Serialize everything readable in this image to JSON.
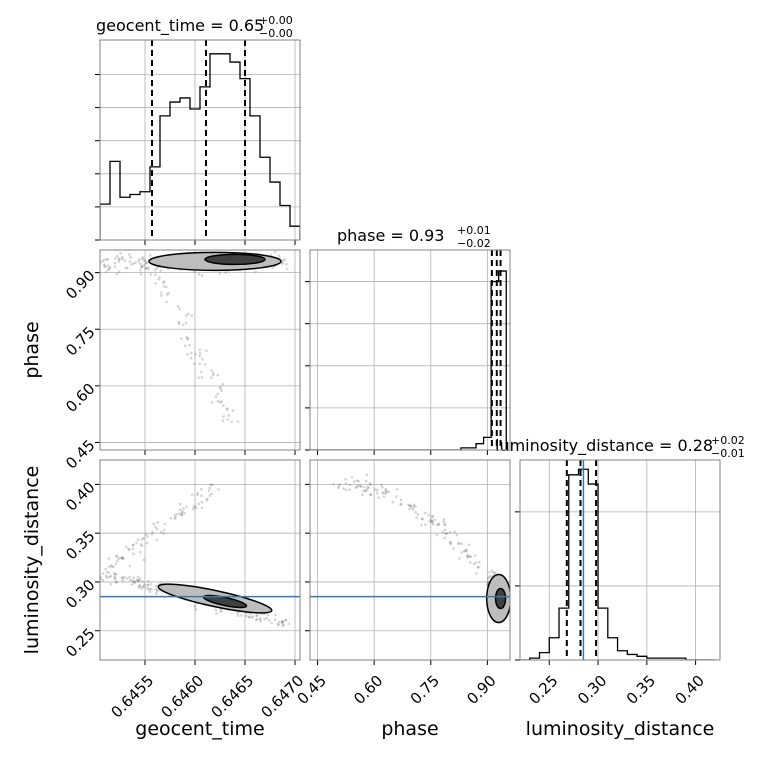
{
  "chart_data": {
    "type": "corner",
    "parameters": [
      "geocent_time",
      "phase",
      "luminosity_distance"
    ],
    "axis_labels": {
      "x": [
        "geocent_time",
        "phase",
        "luminosity_distance"
      ],
      "y": [
        "phase",
        "luminosity_distance"
      ]
    },
    "titles": [
      {
        "param": "geocent_time",
        "label": "geocent_time = 0.65",
        "plus": "+0.00",
        "minus": "−0.00"
      },
      {
        "param": "phase",
        "label": "phase = 0.93",
        "plus": "+0.01",
        "minus": "−0.02"
      },
      {
        "param": "luminosity_distance",
        "label": "luminosity_distance = 0.28",
        "plus": "+0.02",
        "minus": "−0.01"
      }
    ],
    "ranges": {
      "geocent_time": [
        0.64505,
        0.64705
      ],
      "phase": [
        0.43,
        0.96
      ],
      "luminosity_distance": [
        0.22,
        0.425
      ]
    },
    "ticks": {
      "geocent_time": [
        0.6455,
        0.646,
        0.6465,
        0.647
      ],
      "phase": [
        0.45,
        0.6,
        0.75,
        0.9
      ],
      "luminosity_distance": [
        0.25,
        0.3,
        0.35,
        0.4
      ]
    },
    "tick_labels": {
      "geocent_time": [
        "0.6455",
        "0.6460",
        "0.6465",
        "0.6470"
      ],
      "phase": [
        "0.45",
        "0.60",
        "0.75",
        "0.90"
      ],
      "luminosity_distance": [
        "0.25",
        "0.30",
        "0.35",
        "0.40"
      ]
    },
    "quantiles": {
      "geocent_time": [
        0.64557,
        0.64611,
        0.6465
      ],
      "phase": [
        0.912,
        0.925,
        0.935
      ],
      "luminosity_distance": [
        0.268,
        0.282,
        0.298
      ]
    },
    "truth": {
      "luminosity_distance": 0.285
    },
    "histograms": {
      "geocent_time": {
        "edges": [
          0.64505,
          0.64515,
          0.64525,
          0.64535,
          0.64545,
          0.64555,
          0.64565,
          0.64575,
          0.64585,
          0.64595,
          0.64605,
          0.64615,
          0.64625,
          0.64635,
          0.64645,
          0.64655,
          0.64665,
          0.64675,
          0.64685,
          0.64695,
          0.64705
        ],
        "counts": [
          26,
          57,
          31,
          33,
          35,
          53,
          90,
          100,
          103,
          95,
          111,
          135,
          135,
          129,
          117,
          90,
          60,
          42,
          25,
          10
        ]
      },
      "phase": {
        "edges": [
          0.43,
          0.45,
          0.47,
          0.49,
          0.51,
          0.53,
          0.55,
          0.57,
          0.59,
          0.61,
          0.63,
          0.65,
          0.67,
          0.69,
          0.71,
          0.73,
          0.75,
          0.77,
          0.79,
          0.81,
          0.83,
          0.85,
          0.87,
          0.89,
          0.91,
          0.93,
          0.95
        ],
        "counts": [
          0,
          0,
          0,
          0,
          0,
          0,
          0,
          0,
          0,
          0,
          0,
          0,
          0,
          0,
          0,
          0,
          0,
          0,
          0,
          0,
          1,
          1,
          3,
          6,
          80,
          85
        ]
      },
      "luminosity_distance": {
        "edges": [
          0.22,
          0.23,
          0.24,
          0.25,
          0.26,
          0.27,
          0.28,
          0.29,
          0.3,
          0.31,
          0.32,
          0.33,
          0.34,
          0.35,
          0.36,
          0.37,
          0.38,
          0.39,
          0.4,
          0.41,
          0.42
        ],
        "counts": [
          0,
          1,
          4,
          12,
          28,
          100,
          103,
          95,
          28,
          12,
          5,
          3,
          2,
          1,
          1,
          1,
          1,
          0,
          0,
          0
        ]
      }
    },
    "hist_ylim": {
      "geocent_time": 145,
      "phase": 95,
      "luminosity_distance": 108
    },
    "hist_yticks": {
      "geocent_time": [
        0,
        24,
        48,
        72,
        96,
        120
      ],
      "phase": [
        0,
        20,
        40,
        60,
        80
      ],
      "luminosity_distance": [
        0,
        40,
        80
      ]
    },
    "grid": true
  }
}
